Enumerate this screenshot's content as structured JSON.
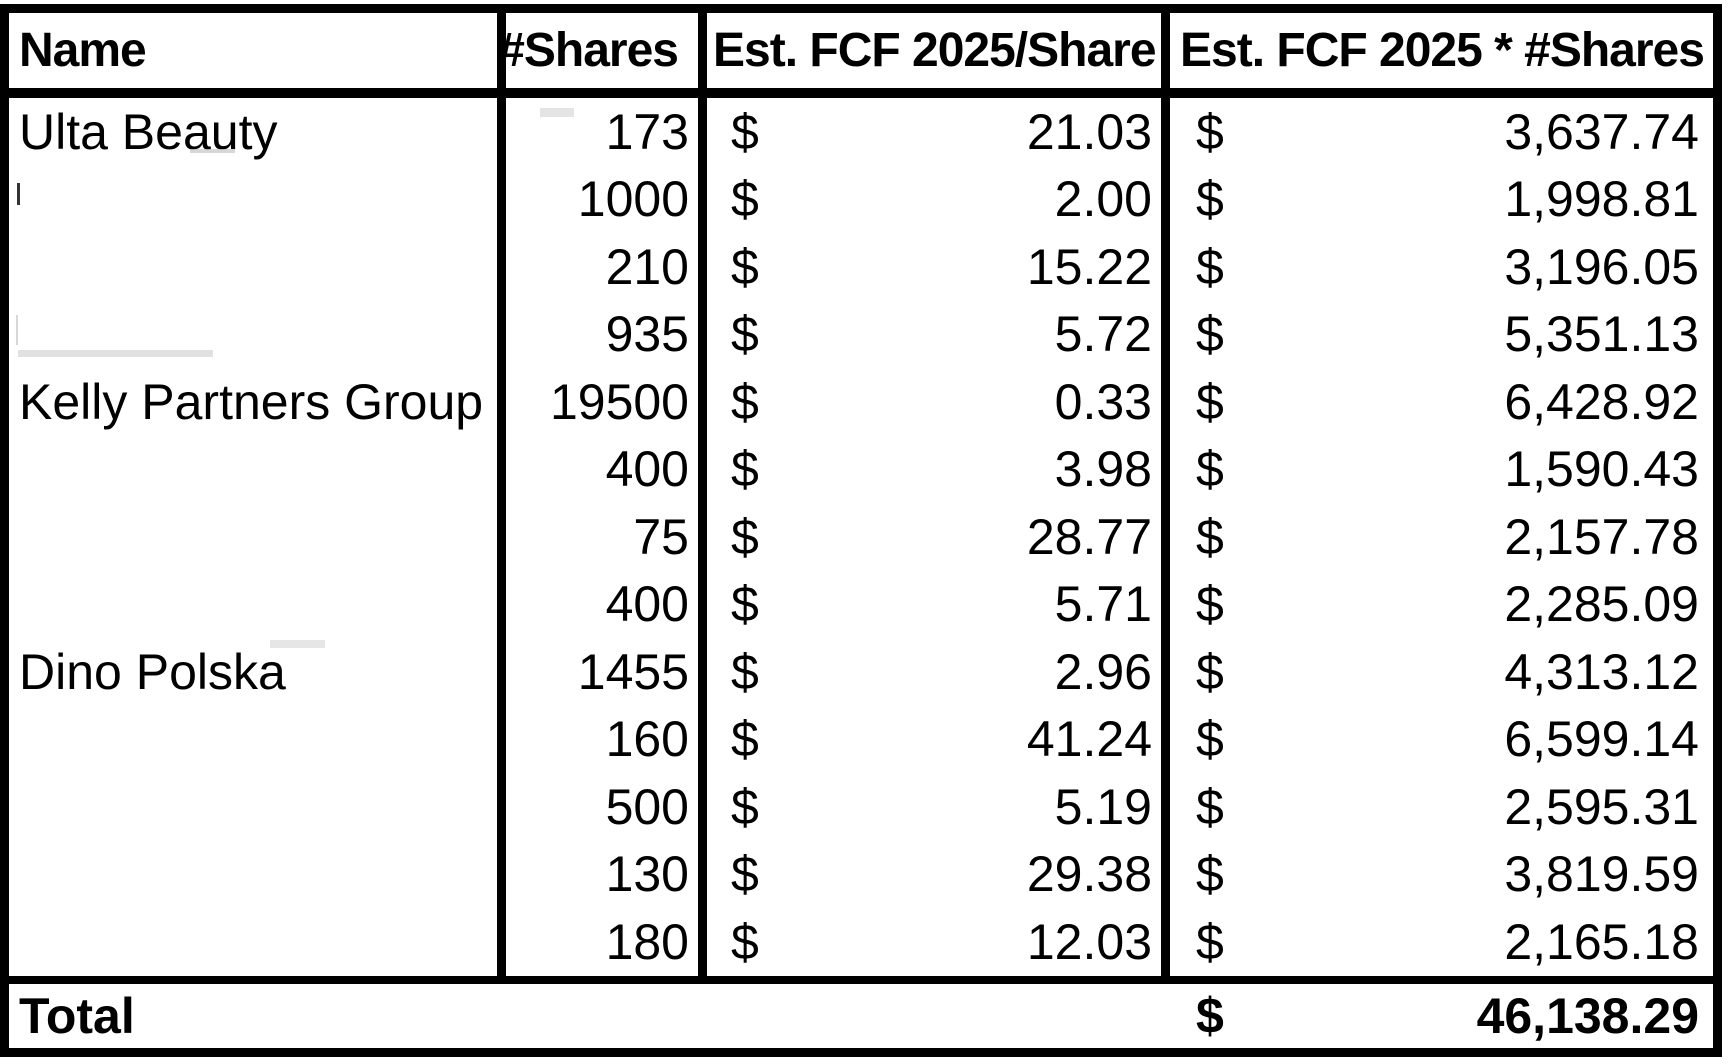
{
  "page": {
    "background": "#ffffff",
    "border_color": "#000000",
    "text_color": "#000000"
  },
  "table": {
    "currency_symbol": "$",
    "columns": {
      "name": "Name",
      "shares": "#Shares",
      "fcf_per_share": "Est. FCF 2025/Share",
      "fcf_total": "Est. FCF 2025 * #Shares"
    },
    "rows": [
      {
        "name": "Ulta Beauty",
        "shares": "173",
        "fcf_per_share": "21.03",
        "fcf_total": "3,637.74"
      },
      {
        "name": "",
        "shares": "1000",
        "fcf_per_share": "2.00",
        "fcf_total": "1,998.81"
      },
      {
        "name": "",
        "shares": "210",
        "fcf_per_share": "15.22",
        "fcf_total": "3,196.05"
      },
      {
        "name": "",
        "shares": "935",
        "fcf_per_share": "5.72",
        "fcf_total": "5,351.13"
      },
      {
        "name": "Kelly Partners Group",
        "shares": "19500",
        "fcf_per_share": "0.33",
        "fcf_total": "6,428.92"
      },
      {
        "name": "",
        "shares": "400",
        "fcf_per_share": "3.98",
        "fcf_total": "1,590.43"
      },
      {
        "name": "",
        "shares": "75",
        "fcf_per_share": "28.77",
        "fcf_total": "2,157.78"
      },
      {
        "name": "",
        "shares": "400",
        "fcf_per_share": "5.71",
        "fcf_total": "2,285.09"
      },
      {
        "name": "Dino Polska",
        "shares": "1455",
        "fcf_per_share": "2.96",
        "fcf_total": "4,313.12"
      },
      {
        "name": "",
        "shares": "160",
        "fcf_per_share": "41.24",
        "fcf_total": "6,599.14"
      },
      {
        "name": "",
        "shares": "500",
        "fcf_per_share": "5.19",
        "fcf_total": "2,595.31"
      },
      {
        "name": "",
        "shares": "130",
        "fcf_per_share": "29.38",
        "fcf_total": "3,819.59"
      },
      {
        "name": "",
        "shares": "180",
        "fcf_per_share": "12.03",
        "fcf_total": "2,165.18"
      }
    ],
    "total": {
      "label": "Total",
      "value": "46,138.29"
    }
  }
}
